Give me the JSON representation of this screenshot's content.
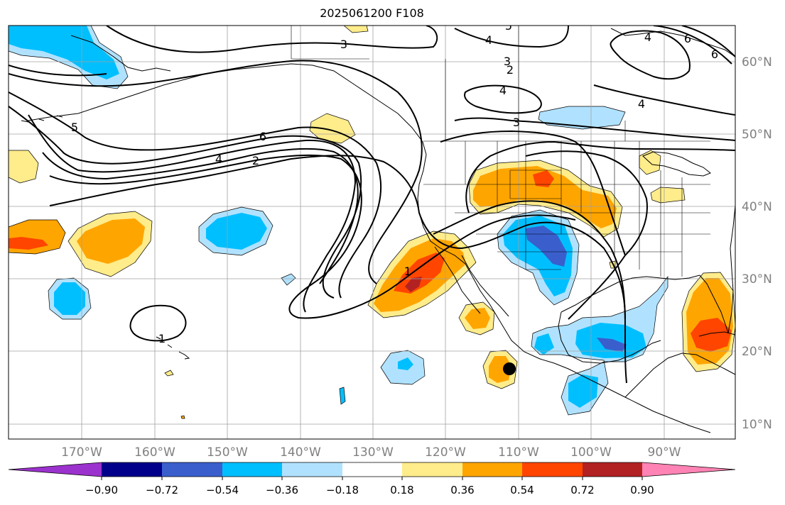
{
  "title": "2025061200 F108",
  "lon_labels": [
    "170°W",
    "160°W",
    "150°W",
    "140°W",
    "130°W",
    "120°W",
    "110°W",
    "100°W",
    "90°W"
  ],
  "lat_labels": [
    "60°N",
    "50°N",
    "40°N",
    "30°N",
    "20°N",
    "10°N"
  ],
  "contour_labels": [
    "3",
    "4",
    "5",
    "5",
    "6",
    "4",
    "2",
    "6",
    "4",
    "3",
    "4",
    "3",
    "2",
    "1",
    "1",
    "6",
    "4"
  ],
  "colorbar": {
    "ticks": [
      "−0.90",
      "−0.72",
      "−0.54",
      "−0.36",
      "−0.18",
      "0.18",
      "0.36",
      "0.54",
      "0.72",
      "0.90"
    ],
    "colors": [
      "#9b32cd",
      "#00008b",
      "#3a5fcd",
      "#00bfff",
      "#b0e2ff",
      "#ffffff",
      "#ffec8b",
      "#ffa500",
      "#ff4500",
      "#b22222",
      "#ff83b4"
    ]
  },
  "colors": {
    "contour": "#000000",
    "grid": "#a0a0a0",
    "coast": "#000000",
    "tick_label": "#808080"
  }
}
